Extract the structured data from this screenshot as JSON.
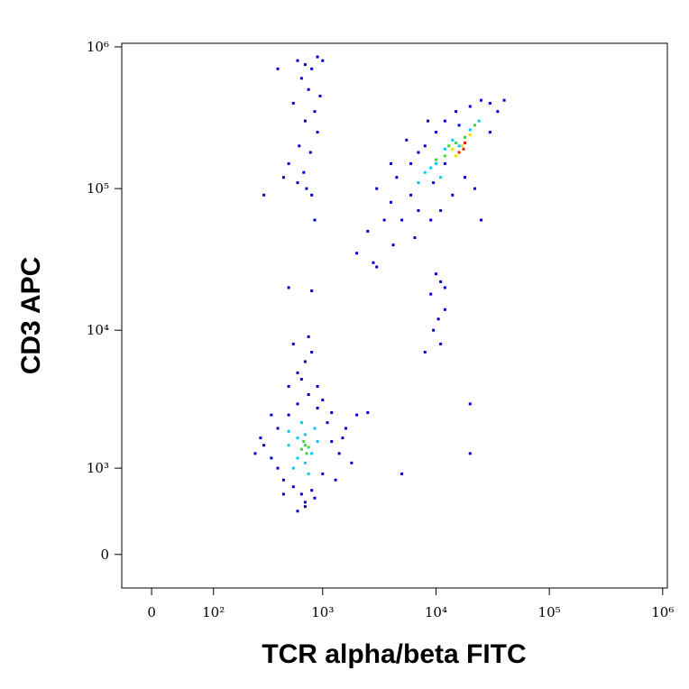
{
  "chart_data": {
    "type": "scatter",
    "x_label": "TCR alpha/beta FITC",
    "y_label": "CD3 APC",
    "xscale": "biexponential",
    "yscale": "biexponential",
    "xlim": [
      -40,
      1100000
    ],
    "ylim": [
      -300,
      1060000
    ],
    "xticks": [
      0,
      {
        "value": 100,
        "label": "10²"
      },
      {
        "value": 1000,
        "label": "10³"
      },
      {
        "value": 10000,
        "label": "10⁴"
      },
      {
        "value": 100000,
        "label": "10⁵"
      },
      {
        "value": 1000000,
        "label": "10⁶"
      }
    ],
    "yticks": [
      0,
      {
        "value": 1000,
        "label": "10³"
      },
      {
        "value": 10000,
        "label": "10⁴"
      },
      {
        "value": 100000,
        "label": "10⁵"
      },
      {
        "value": 1000000,
        "label": "10⁶"
      }
    ],
    "series": [
      {
        "color": "#0000cc",
        "x": [
          600,
          700,
          800,
          650,
          900,
          750,
          550,
          700,
          850,
          620,
          780,
          500,
          900,
          680,
          450,
          720,
          800,
          300,
          1000,
          400,
          950,
          600,
          850,
          500,
          800,
          3000,
          4000,
          5000,
          4500,
          6000,
          7000,
          6000,
          8000,
          10000,
          12000,
          15000,
          20000,
          25000,
          30000,
          35000,
          40000,
          9000,
          11000,
          14000,
          18000,
          22000,
          7000,
          5500,
          4000,
          3500,
          2500,
          2800,
          4200,
          6500,
          9500,
          12000,
          25000,
          30000,
          16000,
          8500,
          2000,
          3000,
          10000,
          11000,
          12000,
          9000,
          9500,
          10500,
          11000,
          8000,
          12000,
          20000,
          20000,
          5000,
          300,
          350,
          400,
          450,
          500,
          550,
          600,
          650,
          700,
          750,
          800,
          900,
          1000,
          1100,
          1200,
          1400,
          1600,
          1800,
          2000,
          2500,
          1300,
          1500,
          400,
          350,
          250,
          280,
          600,
          700,
          500,
          600,
          700,
          800,
          550,
          650,
          900,
          750,
          1000,
          450,
          850,
          1200
        ],
        "y": [
          800000,
          750000,
          700000,
          600000,
          850000,
          500000,
          400000,
          300000,
          350000,
          200000,
          180000,
          150000,
          250000,
          130000,
          120000,
          100000,
          90000,
          90000,
          800000,
          700000,
          450000,
          110000,
          60000,
          20000,
          19000,
          100000,
          80000,
          60000,
          120000,
          150000,
          70000,
          90000,
          200000,
          250000,
          300000,
          350000,
          380000,
          420000,
          400000,
          350000,
          420000,
          60000,
          70000,
          90000,
          120000,
          100000,
          180000,
          220000,
          150000,
          60000,
          50000,
          30000,
          40000,
          45000,
          110000,
          150000,
          60000,
          250000,
          280000,
          300000,
          35000,
          28000,
          25000,
          22000,
          20000,
          18000,
          10000,
          12000,
          8000,
          7000,
          14000,
          3000,
          1300,
          900,
          1500,
          1200,
          2000,
          800,
          2500,
          700,
          3000,
          600,
          500,
          3500,
          650,
          2800,
          900,
          2200,
          1600,
          1300,
          2000,
          1100,
          2500,
          2600,
          800,
          1700,
          1000,
          2500,
          1300,
          1700,
          400,
          450,
          4000,
          5000,
          6000,
          7000,
          8000,
          4500,
          4000,
          9000,
          3200,
          600,
          550,
          2600
        ]
      },
      {
        "color": "#00c8ff",
        "x": [
          500,
          600,
          700,
          800,
          650,
          550,
          750,
          900,
          600,
          850,
          500,
          700,
          7000,
          8000,
          10000,
          12000,
          14000,
          20000,
          9000,
          24000,
          11000,
          16000
        ],
        "y": [
          1500,
          1200,
          1800,
          1300,
          2200,
          1000,
          900,
          1600,
          1700,
          2000,
          1900,
          1100,
          110000,
          130000,
          150000,
          190000,
          220000,
          260000,
          140000,
          300000,
          120000,
          200000
        ]
      },
      {
        "color": "#40d040",
        "x": [
          650,
          700,
          720,
          680,
          750,
          10000,
          12000,
          13000,
          18000,
          15000,
          22000
        ],
        "y": [
          1400,
          1500,
          1300,
          1600,
          1450,
          160000,
          170000,
          200000,
          230000,
          210000,
          280000
        ]
      },
      {
        "color": "#f0d800",
        "x": [
          14000,
          17000,
          20000,
          15000
        ],
        "y": [
          190000,
          200000,
          240000,
          170000
        ]
      },
      {
        "color": "#e02000",
        "x": [
          16000,
          18000,
          17500
        ],
        "y": [
          180000,
          210000,
          190000
        ]
      }
    ]
  }
}
